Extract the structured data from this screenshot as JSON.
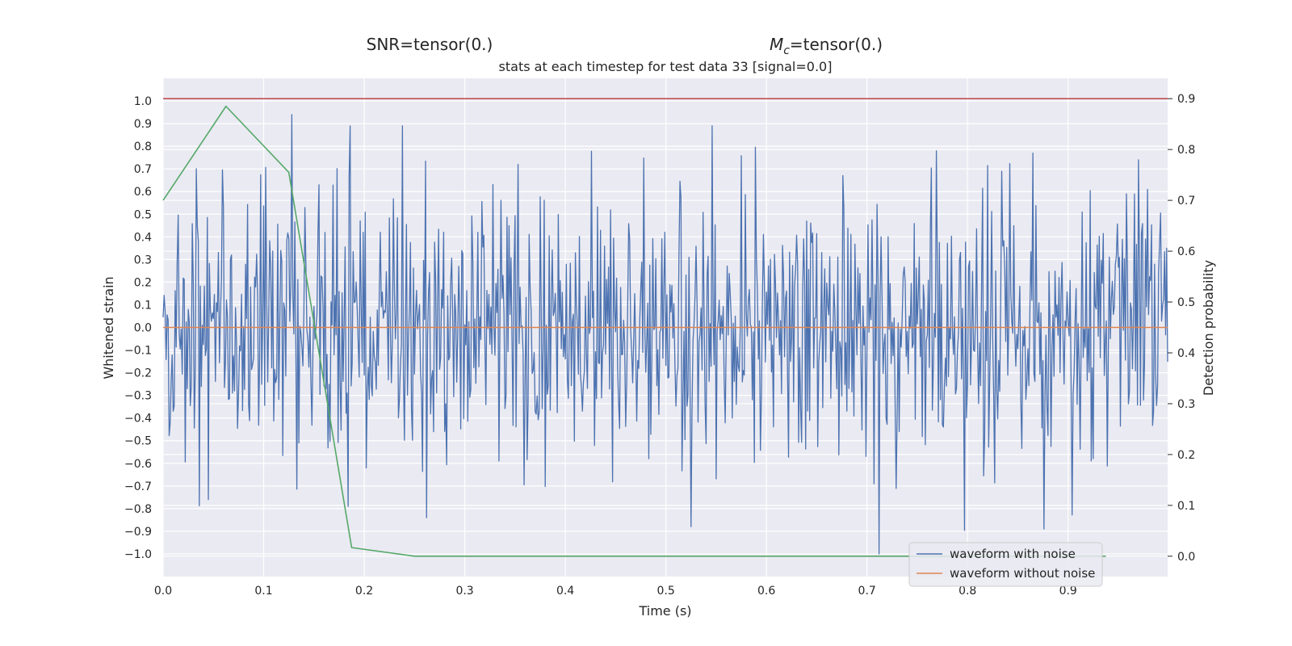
{
  "figure": {
    "suptitle_left": "SNR=tensor(0.)",
    "suptitle_right_prefix": "M",
    "suptitle_right_sub": "c",
    "suptitle_right_suffix": "=tensor(0.)",
    "background": "#eaeaf2",
    "grid_color": "#ffffff"
  },
  "chart_data": {
    "type": "line",
    "title": "stats at each timestep for test data 33 [signal=0.0]",
    "xlabel": "Time (s)",
    "ylabel": "Whitened strain",
    "ylabel_right": "Detection probability",
    "xlim": [
      0.0,
      0.999
    ],
    "ylim": [
      -1.1,
      1.1
    ],
    "ylim_right": [
      -0.04,
      0.94
    ],
    "x_ticks": [
      "0.0",
      "0.1",
      "0.2",
      "0.3",
      "0.4",
      "0.5",
      "0.6",
      "0.7",
      "0.8",
      "0.9"
    ],
    "y_ticks": [
      "1.0",
      "0.9",
      "0.8",
      "0.7",
      "0.6",
      "0.5",
      "0.4",
      "0.3",
      "0.2",
      "0.1",
      "0.0",
      "−0.1",
      "−0.2",
      "−0.3",
      "−0.4",
      "−0.5",
      "−0.6",
      "−0.7",
      "−0.8",
      "−0.9",
      "−1.0"
    ],
    "y_right_ticks": [
      "0.9",
      "0.8",
      "0.7",
      "0.6",
      "0.5",
      "0.4",
      "0.3",
      "0.2",
      "0.1",
      "0.0"
    ],
    "grid": true,
    "legend_position": "lower right",
    "series": [
      {
        "name": "waveform with noise",
        "axis": "left",
        "color": "#4c72b0",
        "kind": "noise",
        "samples": 1000,
        "approx_std": 0.3,
        "min": -1.0,
        "max": 0.94,
        "notable_points": [
          {
            "x": 0.128,
            "y": 0.94
          },
          {
            "x": 0.045,
            "y": -0.76
          },
          {
            "x": 0.184,
            "y": -0.79
          },
          {
            "x": 0.262,
            "y": -0.84
          },
          {
            "x": 0.353,
            "y": 0.72
          },
          {
            "x": 0.525,
            "y": -0.88
          },
          {
            "x": 0.712,
            "y": -1.0
          },
          {
            "x": 0.769,
            "y": 0.78
          },
          {
            "x": 0.865,
            "y": 0.77
          },
          {
            "x": 0.876,
            "y": -0.89
          },
          {
            "x": 0.97,
            "y": 0.74
          }
        ]
      },
      {
        "name": "waveform without noise",
        "axis": "left",
        "color": "#dd8452",
        "x": [
          0.0,
          0.999
        ],
        "values": [
          0.0,
          0.0
        ]
      },
      {
        "name": "",
        "axis": "right",
        "color": "#55a868",
        "x": [
          0.0,
          0.0625,
          0.125,
          0.1875,
          0.25,
          0.9375
        ],
        "values": [
          0.7,
          0.885,
          0.755,
          0.017,
          0.0,
          0.0
        ]
      },
      {
        "name": "",
        "axis": "right",
        "color": "#c44e52",
        "x": [
          0.0,
          0.999
        ],
        "values": [
          0.9,
          0.9
        ]
      }
    ]
  }
}
